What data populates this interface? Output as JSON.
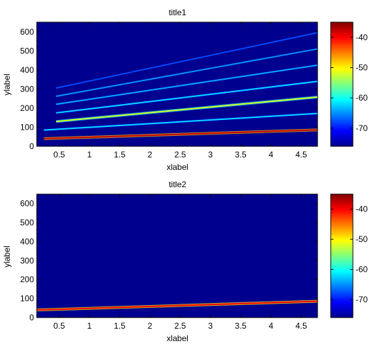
{
  "chart_data": [
    {
      "type": "heatmap",
      "title": "title1",
      "xlabel": "xlabel",
      "ylabel": "ylabel",
      "xlim": [
        0.13,
        4.77
      ],
      "ylim": [
        0,
        650
      ],
      "xticks": [
        0.5,
        1,
        1.5,
        2,
        2.5,
        3,
        3.5,
        4,
        4.5
      ],
      "xtick_labels": [
        "0.5",
        "1",
        "1.5",
        "2",
        "2.5",
        "3",
        "3.5",
        "4",
        "4.5"
      ],
      "yticks": [
        0,
        100,
        200,
        300,
        400,
        500,
        600
      ],
      "ytick_labels": [
        "0",
        "100",
        "200",
        "300",
        "400",
        "500",
        "600"
      ],
      "colorbar": {
        "colormap": "jet",
        "range": [
          -76,
          -35
        ],
        "ticks": [
          -70,
          -60,
          -50,
          -40
        ],
        "tick_labels": [
          "-70",
          "-60",
          "-50",
          "-40"
        ]
      },
      "background_level": -76,
      "ridges": [
        {
          "x": [
            0.25,
            4.77
          ],
          "y": [
            40,
            86
          ],
          "level": -38
        },
        {
          "x": [
            0.25,
            4.77
          ],
          "y": [
            85,
            172
          ],
          "level": -62
        },
        {
          "x": [
            0.45,
            4.77
          ],
          "y": [
            130,
            258
          ],
          "level": -52
        },
        {
          "x": [
            0.45,
            4.77
          ],
          "y": [
            175,
            340
          ],
          "level": -62
        },
        {
          "x": [
            0.45,
            4.77
          ],
          "y": [
            220,
            425
          ],
          "level": -64
        },
        {
          "x": [
            0.45,
            4.77
          ],
          "y": [
            262,
            510
          ],
          "level": -65
        },
        {
          "x": [
            0.45,
            4.77
          ],
          "y": [
            305,
            595
          ],
          "level": -68
        }
      ]
    },
    {
      "type": "heatmap",
      "title": "title2",
      "xlabel": "xlabel",
      "ylabel": "ylabel",
      "xlim": [
        0.13,
        4.77
      ],
      "ylim": [
        0,
        650
      ],
      "xticks": [
        0.5,
        1,
        1.5,
        2,
        2.5,
        3,
        3.5,
        4,
        4.5
      ],
      "xtick_labels": [
        "0.5",
        "1",
        "1.5",
        "2",
        "2.5",
        "3",
        "3.5",
        "4",
        "4.5"
      ],
      "yticks": [
        0,
        100,
        200,
        300,
        400,
        500,
        600
      ],
      "ytick_labels": [
        "0",
        "100",
        "200",
        "300",
        "400",
        "500",
        "600"
      ],
      "colorbar": {
        "colormap": "jet",
        "range": [
          -76,
          -35
        ],
        "ticks": [
          -70,
          -60,
          -50,
          -40
        ],
        "tick_labels": [
          "-70",
          "-60",
          "-50",
          "-40"
        ]
      },
      "background_level": -76,
      "ridges": [
        {
          "x": [
            0.13,
            4.77
          ],
          "y": [
            40,
            86
          ],
          "level": -40
        }
      ]
    }
  ]
}
